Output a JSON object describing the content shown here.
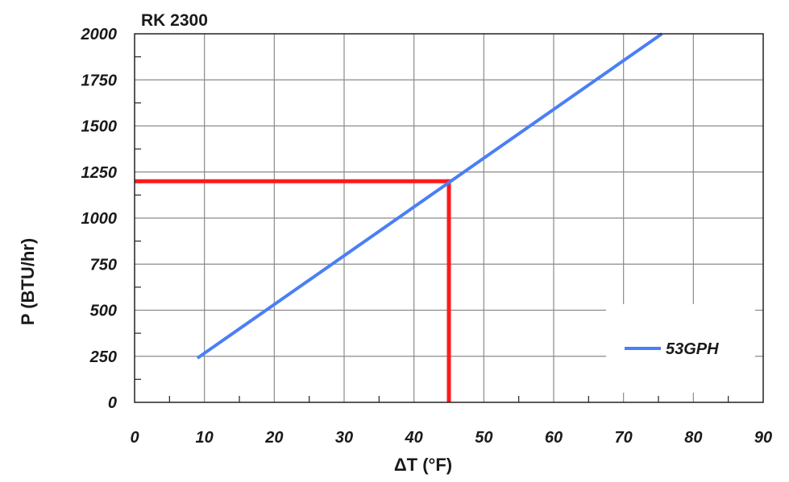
{
  "chart_data": {
    "type": "line",
    "title": "RK 2300",
    "xlabel": "ΔT (°F)",
    "ylabel": "P (BTU/hr)",
    "xlim": [
      0,
      90
    ],
    "ylim": [
      0,
      2000
    ],
    "x_ticks": [
      "0",
      "10",
      "20",
      "30",
      "40",
      "50",
      "60",
      "70",
      "80",
      "90"
    ],
    "y_ticks": [
      "0",
      "250",
      "500",
      "750",
      "1000",
      "1250",
      "1500",
      "1750",
      "2000"
    ],
    "grid": true,
    "legend_position": "bottom-right",
    "series": [
      {
        "name": "53GPH",
        "color": "#4a7ff5",
        "x": [
          9,
          75.5
        ],
        "y": [
          240,
          2000
        ]
      }
    ],
    "annotations": [
      {
        "type": "crosshair",
        "color": "#ff1a1a",
        "x": 45,
        "y": 1200
      }
    ]
  }
}
